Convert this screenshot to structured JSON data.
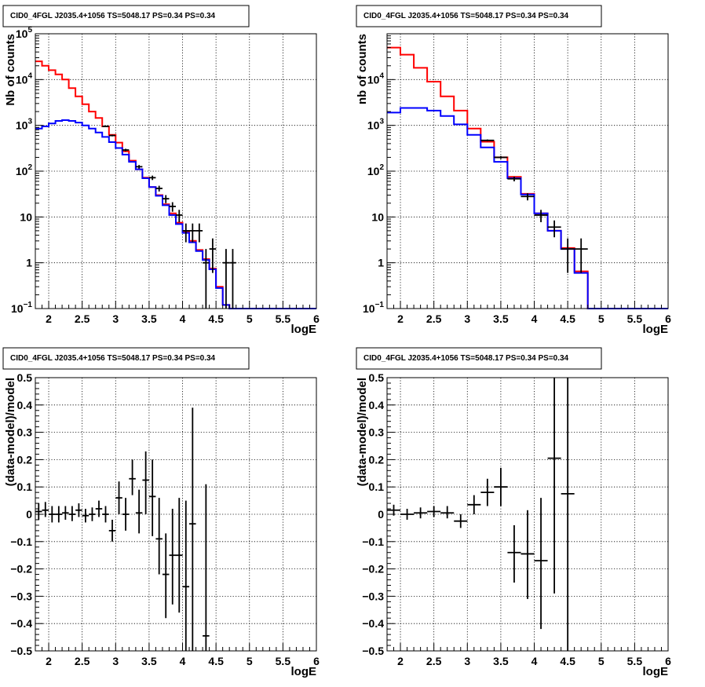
{
  "chart_data": [
    {
      "id": "p1",
      "type": "histogram",
      "title": "CID0_4FGL J2035.4+1056 TS=5048.17 PS=0.34 PS=0.34",
      "xlabel": "logE",
      "ylabel": "Nb of counts",
      "xlim": [
        1.8,
        6.0
      ],
      "ylim": [
        0.1,
        100000
      ],
      "yscale": "log",
      "grid": true,
      "x_ticks": [
        "2",
        "2.5",
        "3",
        "3.5",
        "4",
        "4.5",
        "5",
        "5.5",
        "6"
      ],
      "y_ticks": [
        {
          "value": 0.1,
          "mant": "10",
          "exp": "−1"
        },
        {
          "value": 1,
          "mant": "1",
          "exp": ""
        },
        {
          "value": 10,
          "mant": "10",
          "exp": ""
        },
        {
          "value": 100,
          "mant": "10",
          "exp": "2"
        },
        {
          "value": 1000,
          "mant": "10",
          "exp": "3"
        },
        {
          "value": 10000,
          "mant": "10",
          "exp": "4"
        },
        {
          "value": 100000,
          "mant": "10",
          "exp": "5"
        }
      ],
      "bin_edges": [
        1.8,
        1.9,
        2.0,
        2.1,
        2.2,
        2.3,
        2.4,
        2.5,
        2.6,
        2.7,
        2.8,
        2.9,
        3.0,
        3.1,
        3.2,
        3.3,
        3.4,
        3.5,
        3.6,
        3.7,
        3.8,
        3.9,
        4.0,
        4.1,
        4.2,
        4.3,
        4.4,
        4.5,
        4.6,
        4.7,
        4.8,
        4.9,
        5.0,
        5.1,
        5.2,
        5.3,
        5.4,
        5.5,
        5.6,
        5.7,
        5.8,
        5.9,
        6.0
      ],
      "series": [
        {
          "color": "#ff0000",
          "kind": "step",
          "values": [
            25000,
            20000,
            16000,
            13000,
            10000,
            6500,
            4300,
            2900,
            2000,
            1450,
            950,
            620,
            420,
            270,
            170,
            110,
            72,
            45,
            30,
            19,
            12,
            7.5,
            4.8,
            3.0,
            1.9,
            1.2,
            0.75,
            0.3,
            0.12,
            0.1,
            0.1,
            0.1,
            0.1,
            0.1,
            0.1,
            0.1,
            0.1,
            0.1,
            0.1,
            0.1,
            0.1,
            0.1
          ]
        },
        {
          "color": "#0000ff",
          "kind": "step",
          "values": [
            850,
            950,
            1100,
            1250,
            1300,
            1250,
            1150,
            1000,
            850,
            700,
            560,
            430,
            320,
            230,
            160,
            110,
            70,
            45,
            29,
            18,
            11,
            7,
            4.5,
            2.8,
            1.8,
            1.15,
            0.72,
            0.28,
            0.12,
            0.1,
            0.1,
            0.1,
            0.1,
            0.1,
            0.1,
            0.1,
            0.1,
            0.1,
            0.1,
            0.1,
            0.1,
            0.1
          ]
        }
      ],
      "points": [
        {
          "x": 2.85,
          "xerr": 0.05,
          "y": 950,
          "ylo": 920,
          "yhi": 980
        },
        {
          "x": 2.95,
          "xerr": 0.05,
          "y": 600,
          "ylo": 575,
          "yhi": 625
        },
        {
          "x": 3.15,
          "xerr": 0.05,
          "y": 290,
          "ylo": 272,
          "yhi": 308
        },
        {
          "x": 3.35,
          "xerr": 0.05,
          "y": 125,
          "ylo": 114,
          "yhi": 136
        },
        {
          "x": 3.55,
          "xerr": 0.05,
          "y": 72,
          "ylo": 64,
          "yhi": 80
        },
        {
          "x": 3.65,
          "xerr": 0.05,
          "y": 42,
          "ylo": 36,
          "yhi": 48
        },
        {
          "x": 3.75,
          "xerr": 0.05,
          "y": 25,
          "ylo": 20,
          "yhi": 30
        },
        {
          "x": 3.85,
          "xerr": 0.05,
          "y": 17,
          "ylo": 13,
          "yhi": 21
        },
        {
          "x": 3.95,
          "xerr": 0.05,
          "y": 11,
          "ylo": 7.7,
          "yhi": 14.3
        },
        {
          "x": 4.05,
          "xerr": 0.05,
          "y": 5,
          "ylo": 2.8,
          "yhi": 7.2
        },
        {
          "x": 4.15,
          "xerr": 0.05,
          "y": 5,
          "ylo": 2.8,
          "yhi": 7.2
        },
        {
          "x": 4.25,
          "xerr": 0.05,
          "y": 5,
          "ylo": 2.8,
          "yhi": 7.2
        },
        {
          "x": 4.35,
          "xerr": 0.05,
          "y": 1,
          "ylo": 0.1,
          "yhi": 2
        },
        {
          "x": 4.45,
          "xerr": 0.05,
          "y": 2,
          "ylo": 0.6,
          "yhi": 3.4
        },
        {
          "x": 4.65,
          "xerr": 0.05,
          "y": 1,
          "ylo": 0.1,
          "yhi": 2
        },
        {
          "x": 4.75,
          "xerr": 0.05,
          "y": 1,
          "ylo": 0.1,
          "yhi": 2
        }
      ]
    },
    {
      "id": "p2",
      "type": "histogram",
      "title": "CID0_4FGL J2035.4+1056 TS=5048.17 PS=0.34 PS=0.34",
      "xlabel": "logE",
      "ylabel": "nb of counts",
      "xlim": [
        1.8,
        6.0
      ],
      "ylim": [
        0.1,
        100000
      ],
      "yscale": "log",
      "grid": true,
      "x_ticks": [
        "2",
        "2.5",
        "3",
        "3.5",
        "4",
        "4.5",
        "5",
        "5.5",
        "6"
      ],
      "y_ticks": [
        {
          "value": 0.1,
          "mant": "10",
          "exp": "−1"
        },
        {
          "value": 1,
          "mant": "1",
          "exp": ""
        },
        {
          "value": 10,
          "mant": "10",
          "exp": ""
        },
        {
          "value": 100,
          "mant": "10",
          "exp": "2"
        },
        {
          "value": 1000,
          "mant": "10",
          "exp": "3"
        },
        {
          "value": 10000,
          "mant": "10",
          "exp": "4"
        }
      ],
      "bin_edges": [
        1.8,
        2.0,
        2.2,
        2.4,
        2.6,
        2.8,
        3.0,
        3.2,
        3.4,
        3.6,
        3.8,
        4.0,
        4.2,
        4.4,
        4.6,
        4.8,
        5.0,
        5.2,
        5.4,
        5.6,
        5.8,
        6.0
      ],
      "series": [
        {
          "color": "#ff0000",
          "kind": "step",
          "values": [
            50000,
            35000,
            18000,
            9000,
            4300,
            2100,
            850,
            440,
            200,
            75,
            32,
            12,
            5,
            2.1,
            0.65,
            0.1,
            0.1,
            0.1,
            0.1,
            0.1,
            0.1
          ]
        },
        {
          "color": "#0000ff",
          "kind": "step",
          "values": [
            1900,
            2400,
            2400,
            2100,
            1600,
            1050,
            620,
            330,
            160,
            70,
            31,
            12,
            5,
            2.0,
            0.6,
            0.1,
            0.1,
            0.1,
            0.1,
            0.1,
            0.1
          ]
        }
      ],
      "points": [
        {
          "x": 3.3,
          "xerr": 0.1,
          "y": 470,
          "ylo": 448,
          "yhi": 492
        },
        {
          "x": 3.5,
          "xerr": 0.1,
          "y": 200,
          "ylo": 186,
          "yhi": 214
        },
        {
          "x": 3.7,
          "xerr": 0.1,
          "y": 68,
          "ylo": 60,
          "yhi": 76
        },
        {
          "x": 3.9,
          "xerr": 0.1,
          "y": 28,
          "ylo": 23,
          "yhi": 33
        },
        {
          "x": 4.1,
          "xerr": 0.1,
          "y": 11,
          "ylo": 7.7,
          "yhi": 14.3
        },
        {
          "x": 4.3,
          "xerr": 0.1,
          "y": 6,
          "ylo": 3.6,
          "yhi": 8.4
        },
        {
          "x": 4.5,
          "xerr": 0.1,
          "y": 2,
          "ylo": 0.6,
          "yhi": 3.4
        },
        {
          "x": 4.7,
          "xerr": 0.1,
          "y": 2,
          "ylo": 0.6,
          "yhi": 3.4
        }
      ]
    },
    {
      "id": "p3",
      "type": "scatter",
      "title": "CID0_4FGL J2035.4+1056 TS=5048.17 PS=0.34 PS=0.34",
      "xlabel": "logE",
      "ylabel": "(data-model)/model",
      "xlim": [
        1.8,
        6.0
      ],
      "ylim": [
        -0.5,
        0.5
      ],
      "yscale": "linear",
      "grid": true,
      "x_ticks": [
        "2",
        "2.5",
        "3",
        "3.5",
        "4",
        "4.5",
        "5",
        "5.5",
        "6"
      ],
      "y_ticks": [
        "−0.5",
        "−0.4",
        "−0.3",
        "−0.2",
        "−0.1",
        "0",
        "0.1",
        "0.2",
        "0.3",
        "0.4",
        "0.5"
      ],
      "points": [
        {
          "x": 1.85,
          "xerr": 0.05,
          "y": 0.01,
          "ylo": -0.02,
          "yhi": 0.04
        },
        {
          "x": 1.95,
          "xerr": 0.05,
          "y": 0.015,
          "ylo": -0.01,
          "yhi": 0.045
        },
        {
          "x": 2.05,
          "xerr": 0.05,
          "y": 0.0,
          "ylo": -0.03,
          "yhi": 0.03
        },
        {
          "x": 2.15,
          "xerr": 0.05,
          "y": 0.0,
          "ylo": -0.03,
          "yhi": 0.03
        },
        {
          "x": 2.25,
          "xerr": 0.05,
          "y": 0.005,
          "ylo": -0.02,
          "yhi": 0.03
        },
        {
          "x": 2.35,
          "xerr": 0.05,
          "y": 0.0,
          "ylo": -0.025,
          "yhi": 0.03
        },
        {
          "x": 2.45,
          "xerr": 0.05,
          "y": 0.015,
          "ylo": -0.01,
          "yhi": 0.04
        },
        {
          "x": 2.55,
          "xerr": 0.05,
          "y": -0.005,
          "ylo": -0.03,
          "yhi": 0.02
        },
        {
          "x": 2.65,
          "xerr": 0.05,
          "y": 0.0,
          "ylo": -0.025,
          "yhi": 0.025
        },
        {
          "x": 2.75,
          "xerr": 0.05,
          "y": 0.02,
          "ylo": -0.01,
          "yhi": 0.05
        },
        {
          "x": 2.85,
          "xerr": 0.05,
          "y": 0.0,
          "ylo": -0.03,
          "yhi": 0.03
        },
        {
          "x": 2.95,
          "xerr": 0.05,
          "y": -0.06,
          "ylo": -0.1,
          "yhi": -0.02
        },
        {
          "x": 3.05,
          "xerr": 0.05,
          "y": 0.06,
          "ylo": 0.0,
          "yhi": 0.12
        },
        {
          "x": 3.15,
          "xerr": 0.05,
          "y": 0.0,
          "ylo": -0.06,
          "yhi": 0.06
        },
        {
          "x": 3.25,
          "xerr": 0.05,
          "y": 0.13,
          "ylo": 0.07,
          "yhi": 0.2
        },
        {
          "x": 3.35,
          "xerr": 0.05,
          "y": 0.005,
          "ylo": -0.07,
          "yhi": 0.09
        },
        {
          "x": 3.45,
          "xerr": 0.05,
          "y": 0.125,
          "ylo": 0.0,
          "yhi": 0.23
        },
        {
          "x": 3.55,
          "xerr": 0.05,
          "y": 0.065,
          "ylo": -0.08,
          "yhi": 0.2
        },
        {
          "x": 3.65,
          "xerr": 0.05,
          "y": -0.09,
          "ylo": -0.22,
          "yhi": 0.06
        },
        {
          "x": 3.75,
          "xerr": 0.05,
          "y": -0.22,
          "ylo": -0.38,
          "yhi": -0.07
        },
        {
          "x": 3.85,
          "xerr": 0.05,
          "y": -0.15,
          "ylo": -0.33,
          "yhi": 0.02
        },
        {
          "x": 3.95,
          "xerr": 0.05,
          "y": -0.15,
          "ylo": -0.36,
          "yhi": 0.06
        },
        {
          "x": 4.05,
          "xerr": 0.05,
          "y": -0.265,
          "ylo": -0.5,
          "yhi": 0.05
        },
        {
          "x": 4.15,
          "xerr": 0.05,
          "y": -0.035,
          "ylo": -0.5,
          "yhi": 0.39
        },
        {
          "x": 4.35,
          "xerr": 0.05,
          "y": -0.445,
          "ylo": -0.5,
          "yhi": 0.11
        }
      ]
    },
    {
      "id": "p4",
      "type": "scatter",
      "title": "CID0_4FGL J2035.4+1056 TS=5048.17 PS=0.34 PS=0.34",
      "xlabel": "logE",
      "ylabel": "(data-model)/model",
      "xlim": [
        1.8,
        6.0
      ],
      "ylim": [
        -0.5,
        0.5
      ],
      "yscale": "linear",
      "grid": true,
      "x_ticks": [
        "2",
        "2.5",
        "3",
        "3.5",
        "4",
        "4.5",
        "5",
        "5.5",
        "6"
      ],
      "y_ticks": [
        "−0.5",
        "−0.4",
        "−0.3",
        "−0.2",
        "−0.1",
        "0",
        "0.1",
        "0.2",
        "0.3",
        "0.4",
        "0.5"
      ],
      "points": [
        {
          "x": 1.9,
          "xerr": 0.1,
          "y": 0.015,
          "ylo": -0.005,
          "yhi": 0.035
        },
        {
          "x": 2.1,
          "xerr": 0.1,
          "y": 0.0,
          "ylo": -0.02,
          "yhi": 0.02
        },
        {
          "x": 2.3,
          "xerr": 0.1,
          "y": 0.005,
          "ylo": -0.015,
          "yhi": 0.025
        },
        {
          "x": 2.5,
          "xerr": 0.1,
          "y": 0.01,
          "ylo": -0.01,
          "yhi": 0.03
        },
        {
          "x": 2.7,
          "xerr": 0.1,
          "y": 0.005,
          "ylo": -0.015,
          "yhi": 0.03
        },
        {
          "x": 2.9,
          "xerr": 0.1,
          "y": -0.025,
          "ylo": -0.05,
          "yhi": 0.0
        },
        {
          "x": 3.1,
          "xerr": 0.1,
          "y": 0.035,
          "ylo": 0.0,
          "yhi": 0.07
        },
        {
          "x": 3.3,
          "xerr": 0.1,
          "y": 0.08,
          "ylo": 0.03,
          "yhi": 0.13
        },
        {
          "x": 3.5,
          "xerr": 0.1,
          "y": 0.1,
          "ylo": 0.03,
          "yhi": 0.17
        },
        {
          "x": 3.7,
          "xerr": 0.1,
          "y": -0.14,
          "ylo": -0.25,
          "yhi": -0.04
        },
        {
          "x": 3.9,
          "xerr": 0.1,
          "y": -0.145,
          "ylo": -0.31,
          "yhi": 0.015
        },
        {
          "x": 4.1,
          "xerr": 0.1,
          "y": -0.17,
          "ylo": -0.42,
          "yhi": 0.06
        },
        {
          "x": 4.3,
          "xerr": 0.1,
          "y": 0.205,
          "ylo": -0.29,
          "yhi": 0.5
        },
        {
          "x": 4.5,
          "xerr": 0.1,
          "y": 0.075,
          "ylo": -0.5,
          "yhi": 0.5
        }
      ]
    }
  ]
}
